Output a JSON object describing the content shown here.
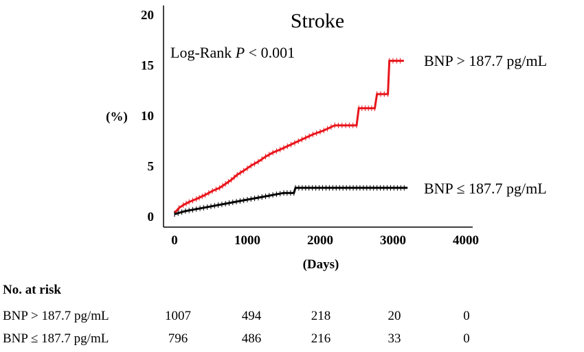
{
  "chart_data": {
    "type": "line",
    "title": "Stroke",
    "annotation": {
      "prefix": "Log-Rank ",
      "p": "P",
      "suffix": " < 0.001"
    },
    "xlabel": "(Days)",
    "ylabel": "(%)",
    "xlim": [
      0,
      4000
    ],
    "ylim": [
      0,
      20
    ],
    "xticks": [
      0,
      1000,
      2000,
      3000,
      4000
    ],
    "yticks": [
      0,
      5,
      10,
      15,
      20
    ],
    "grid": false,
    "legend": "inline-right",
    "series": [
      {
        "name": "BNP > 187.7 pg/mL",
        "color": "#e8141b",
        "points": [
          [
            0,
            0.3
          ],
          [
            60,
            0.8
          ],
          [
            120,
            1.1
          ],
          [
            200,
            1.4
          ],
          [
            300,
            1.7
          ],
          [
            420,
            2.1
          ],
          [
            520,
            2.5
          ],
          [
            620,
            2.8
          ],
          [
            700,
            3.2
          ],
          [
            780,
            3.6
          ],
          [
            860,
            4.1
          ],
          [
            950,
            4.5
          ],
          [
            1050,
            5.0
          ],
          [
            1150,
            5.4
          ],
          [
            1250,
            5.9
          ],
          [
            1350,
            6.3
          ],
          [
            1450,
            6.6
          ],
          [
            1600,
            7.1
          ],
          [
            1750,
            7.6
          ],
          [
            1900,
            8.1
          ],
          [
            2050,
            8.5
          ],
          [
            2200,
            9.0
          ],
          [
            2500,
            9.0
          ],
          [
            2530,
            10.7
          ],
          [
            2750,
            10.7
          ],
          [
            2780,
            12.1
          ],
          [
            2930,
            12.1
          ],
          [
            2950,
            15.4
          ],
          [
            3150,
            15.4
          ]
        ]
      },
      {
        "name": "BNP ≤ 187.7 pg/mL",
        "color": "#000000",
        "points": [
          [
            0,
            0.2
          ],
          [
            150,
            0.5
          ],
          [
            300,
            0.7
          ],
          [
            450,
            0.9
          ],
          [
            600,
            1.1
          ],
          [
            750,
            1.3
          ],
          [
            900,
            1.5
          ],
          [
            1050,
            1.7
          ],
          [
            1200,
            1.9
          ],
          [
            1350,
            2.1
          ],
          [
            1500,
            2.3
          ],
          [
            1640,
            2.3
          ],
          [
            1660,
            2.8
          ],
          [
            3200,
            2.8
          ]
        ]
      }
    ]
  },
  "risk_table": {
    "heading": "No. at risk",
    "columns": [
      0,
      1000,
      2000,
      3000,
      4000
    ],
    "rows": [
      {
        "label": "BNP > 187.7 pg/mL",
        "values": [
          "1007",
          "494",
          "218",
          "20",
          "0"
        ]
      },
      {
        "label": "BNP ≤ 187.7 pg/mL",
        "values": [
          "796",
          "486",
          "216",
          "33",
          "0"
        ]
      }
    ]
  }
}
